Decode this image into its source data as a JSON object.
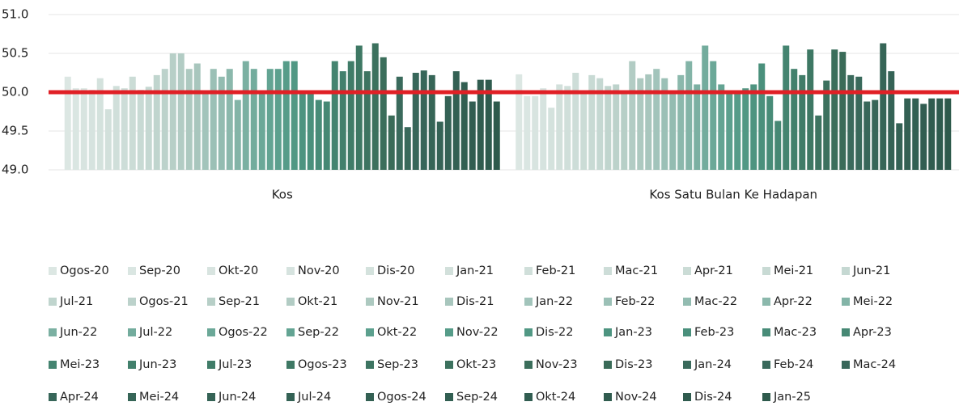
{
  "chart_data": {
    "type": "bar",
    "categories": [
      "Kos",
      "Kos Satu Bulan Ke Hadapan"
    ],
    "ylim": [
      49,
      51
    ],
    "yticks": [
      {
        "value": 49,
        "label": "49.0"
      },
      {
        "value": 49.5,
        "label": "49.5"
      },
      {
        "value": 50,
        "label": "50.0"
      },
      {
        "value": 50.5,
        "label": "50.5"
      },
      {
        "value": 51,
        "label": "51.0"
      }
    ],
    "grid": true,
    "series": [
      {
        "name": "Ogos-20",
        "color": "#dce7e3",
        "values": [
          50.2,
          50.23
        ]
      },
      {
        "name": "Sep-20",
        "color": "#dae6e2",
        "values": [
          50.05,
          49.95
        ]
      },
      {
        "name": "Okt-20",
        "color": "#d8e4e0",
        "values": [
          50.05,
          49.95
        ]
      },
      {
        "name": "Nov-20",
        "color": "#d6e3df",
        "values": [
          50.03,
          50.05
        ]
      },
      {
        "name": "Dis-20",
        "color": "#d4e2dd",
        "values": [
          50.18,
          49.8
        ]
      },
      {
        "name": "Jan-21",
        "color": "#d2e0db",
        "values": [
          49.78,
          50.1
        ]
      },
      {
        "name": "Feb-21",
        "color": "#d0dfda",
        "values": [
          50.08,
          50.08
        ]
      },
      {
        "name": "Mac-21",
        "color": "#cdddd8",
        "values": [
          50.05,
          50.25
        ]
      },
      {
        "name": "Apr-21",
        "color": "#cbdcd6",
        "values": [
          50.2,
          50.0
        ]
      },
      {
        "name": "Mei-21",
        "color": "#c8dad4",
        "values": [
          50.03,
          50.22
        ]
      },
      {
        "name": "Jun-21",
        "color": "#c5d8d2",
        "values": [
          50.07,
          50.18
        ]
      },
      {
        "name": "Jul-21",
        "color": "#c0d5ce",
        "values": [
          50.22,
          50.08
        ]
      },
      {
        "name": "Ogos-21",
        "color": "#bcd2cb",
        "values": [
          50.3,
          50.1
        ]
      },
      {
        "name": "Sep-21",
        "color": "#b7cfc7",
        "values": [
          50.5,
          50.0
        ]
      },
      {
        "name": "Okt-21",
        "color": "#b2ccc4",
        "values": [
          50.5,
          50.4
        ]
      },
      {
        "name": "Nov-21",
        "color": "#adc9c0",
        "values": [
          50.3,
          50.18
        ]
      },
      {
        "name": "Dis-21",
        "color": "#a8c6bd",
        "values": [
          50.37,
          50.23
        ]
      },
      {
        "name": "Jan-22",
        "color": "#a2c4bb",
        "values": [
          50.0,
          50.3
        ]
      },
      {
        "name": "Feb-22",
        "color": "#9bc0b6",
        "values": [
          50.3,
          50.18
        ]
      },
      {
        "name": "Mac-22",
        "color": "#93bcb1",
        "values": [
          50.2,
          50.0
        ]
      },
      {
        "name": "Apr-22",
        "color": "#8bb8ac",
        "values": [
          50.3,
          50.22
        ]
      },
      {
        "name": "Mei-22",
        "color": "#83b4a7",
        "values": [
          49.9,
          50.4
        ]
      },
      {
        "name": "Jun-22",
        "color": "#7bb0a2",
        "values": [
          50.4,
          50.1
        ]
      },
      {
        "name": "Jul-22",
        "color": "#73ac9d",
        "values": [
          50.3,
          50.6
        ]
      },
      {
        "name": "Ogos-22",
        "color": "#6ba898",
        "values": [
          50.0,
          50.4
        ]
      },
      {
        "name": "Sep-22",
        "color": "#63a493",
        "values": [
          50.3,
          50.1
        ]
      },
      {
        "name": "Okt-22",
        "color": "#5ca08e",
        "values": [
          50.3,
          50.0
        ]
      },
      {
        "name": "Nov-22",
        "color": "#569c89",
        "values": [
          50.4,
          50.0
        ]
      },
      {
        "name": "Dis-22",
        "color": "#519884",
        "values": [
          50.4,
          50.05
        ]
      },
      {
        "name": "Jan-23",
        "color": "#4d9480",
        "values": [
          50.0,
          50.1
        ]
      },
      {
        "name": "Feb-23",
        "color": "#4a907c",
        "values": [
          50.0,
          50.37
        ]
      },
      {
        "name": "Mac-23",
        "color": "#488c78",
        "values": [
          49.9,
          49.95
        ]
      },
      {
        "name": "Apr-23",
        "color": "#468874",
        "values": [
          49.88,
          49.63
        ]
      },
      {
        "name": "Mei-23",
        "color": "#448470",
        "values": [
          50.4,
          50.6
        ]
      },
      {
        "name": "Jun-23",
        "color": "#42806c",
        "values": [
          50.27,
          50.3
        ]
      },
      {
        "name": "Jul-23",
        "color": "#407c68",
        "values": [
          50.4,
          50.22
        ]
      },
      {
        "name": "Ogos-23",
        "color": "#3e7864",
        "values": [
          50.6,
          50.55
        ]
      },
      {
        "name": "Sep-23",
        "color": "#3d7461",
        "values": [
          50.27,
          49.7
        ]
      },
      {
        "name": "Okt-23",
        "color": "#3c715e",
        "values": [
          50.63,
          50.15
        ]
      },
      {
        "name": "Nov-23",
        "color": "#3b6e5b",
        "values": [
          50.45,
          50.55
        ]
      },
      {
        "name": "Dis-23",
        "color": "#3a6b58",
        "values": [
          49.7,
          50.52
        ]
      },
      {
        "name": "Jan-24",
        "color": "#3a6a5c",
        "values": [
          50.2,
          50.22
        ]
      },
      {
        "name": "Feb-24",
        "color": "#39695b",
        "values": [
          49.55,
          50.2
        ]
      },
      {
        "name": "Mac-24",
        "color": "#38675a",
        "values": [
          50.25,
          49.88
        ]
      },
      {
        "name": "Apr-24",
        "color": "#376659",
        "values": [
          50.28,
          49.9
        ]
      },
      {
        "name": "Mei-24",
        "color": "#366557",
        "values": [
          50.22,
          50.63
        ]
      },
      {
        "name": "Jun-24",
        "color": "#356356",
        "values": [
          49.62,
          50.27
        ]
      },
      {
        "name": "Jul-24",
        "color": "#346255",
        "values": [
          49.95,
          49.6
        ]
      },
      {
        "name": "Ogos-24",
        "color": "#336053",
        "values": [
          50.27,
          49.92
        ]
      },
      {
        "name": "Sep-24",
        "color": "#325f52",
        "values": [
          50.13,
          49.92
        ]
      },
      {
        "name": "Okt-24",
        "color": "#315d51",
        "values": [
          49.88,
          49.85
        ]
      },
      {
        "name": "Nov-24",
        "color": "#305c4f",
        "values": [
          50.16,
          49.92
        ]
      },
      {
        "name": "Dis-24",
        "color": "#2f5b4e",
        "values": [
          50.16,
          49.92
        ]
      },
      {
        "name": "Jan-25",
        "color": "#2e5a4c",
        "values": [
          49.88,
          49.92
        ]
      }
    ]
  }
}
